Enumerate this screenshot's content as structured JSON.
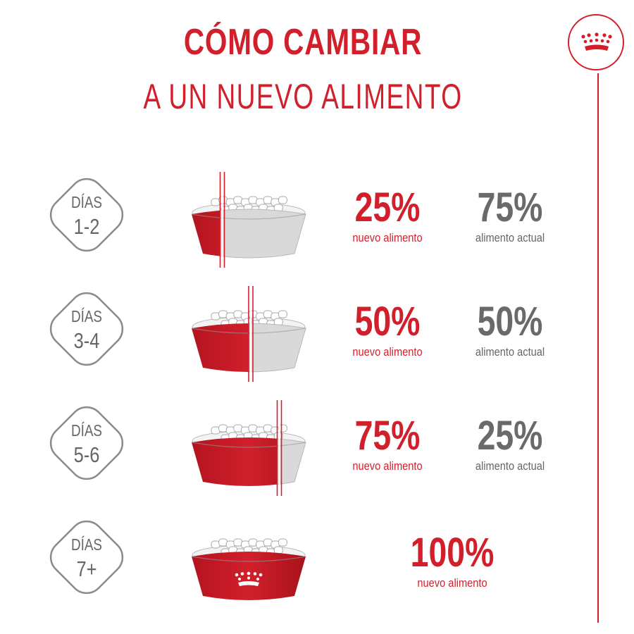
{
  "title_line1": "CÓMO CAMBIAR",
  "title_line2": "A UN NUEVO ALIMENTO",
  "colors": {
    "brand_red": "#d1202c",
    "gray_text": "#666666",
    "bowl_gray": "#d9d9d9"
  },
  "steps": [
    {
      "day_word": "DÍAS",
      "days": "1-2",
      "new_fraction": 0.25,
      "new_pct": "25%",
      "new_label": "nuevo alimento",
      "current_pct": "75%",
      "current_label": "alimento actual"
    },
    {
      "day_word": "DÍAS",
      "days": "3-4",
      "new_fraction": 0.5,
      "new_pct": "50%",
      "new_label": "nuevo alimento",
      "current_pct": "50%",
      "current_label": "alimento actual"
    },
    {
      "day_word": "DÍAS",
      "days": "5-6",
      "new_fraction": 0.75,
      "new_pct": "75%",
      "new_label": "nuevo alimento",
      "current_pct": "25%",
      "current_label": "alimento actual"
    },
    {
      "day_word": "DÍAS",
      "days": "7+",
      "new_fraction": 1.0,
      "new_pct": "100%",
      "new_label": "nuevo alimento"
    }
  ],
  "icons": {
    "brand": "crown-icon",
    "bowl": "food-bowl-icon"
  }
}
